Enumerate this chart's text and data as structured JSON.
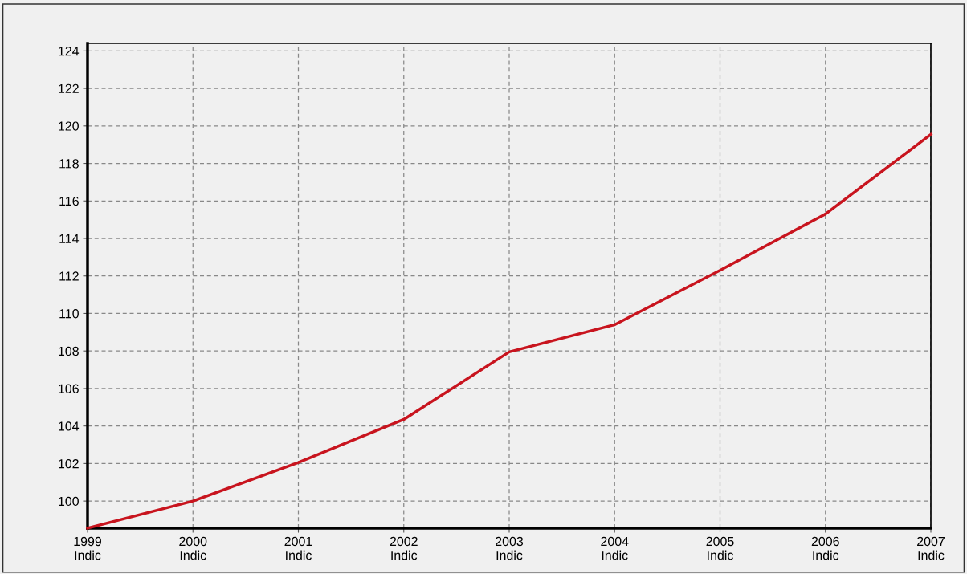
{
  "chart_data": {
    "type": "line",
    "x": [
      1999,
      2000,
      2001,
      2002,
      2003,
      2004,
      2005,
      2006,
      2007
    ],
    "series": [
      {
        "color": "#c8141e",
        "values": [
          98.55,
          100.0,
          102.05,
          104.35,
          107.95,
          109.4,
          112.3,
          115.3,
          119.55
        ]
      }
    ],
    "xlim": [
      1999,
      2007
    ],
    "xticks": [
      {
        "value": 1999,
        "label": "1999\nIndic"
      },
      {
        "value": 2000,
        "label": "2000\nIndic"
      },
      {
        "value": 2001,
        "label": "2001\nIndic"
      },
      {
        "value": 2002,
        "label": "2002\nIndic"
      },
      {
        "value": 2003,
        "label": "2003\nIndic"
      },
      {
        "value": 2004,
        "label": "2004\nIndic"
      },
      {
        "value": 2005,
        "label": "2005\nIndic"
      },
      {
        "value": 2006,
        "label": "2006\nIndic"
      },
      {
        "value": 2007,
        "label": "2007\nIndic"
      }
    ],
    "ylim": [
      98.55,
      124.4
    ],
    "yticks": [
      100,
      102,
      104,
      106,
      108,
      110,
      112,
      114,
      116,
      118,
      120,
      122,
      124
    ],
    "grid": true,
    "line_style": "solid"
  }
}
